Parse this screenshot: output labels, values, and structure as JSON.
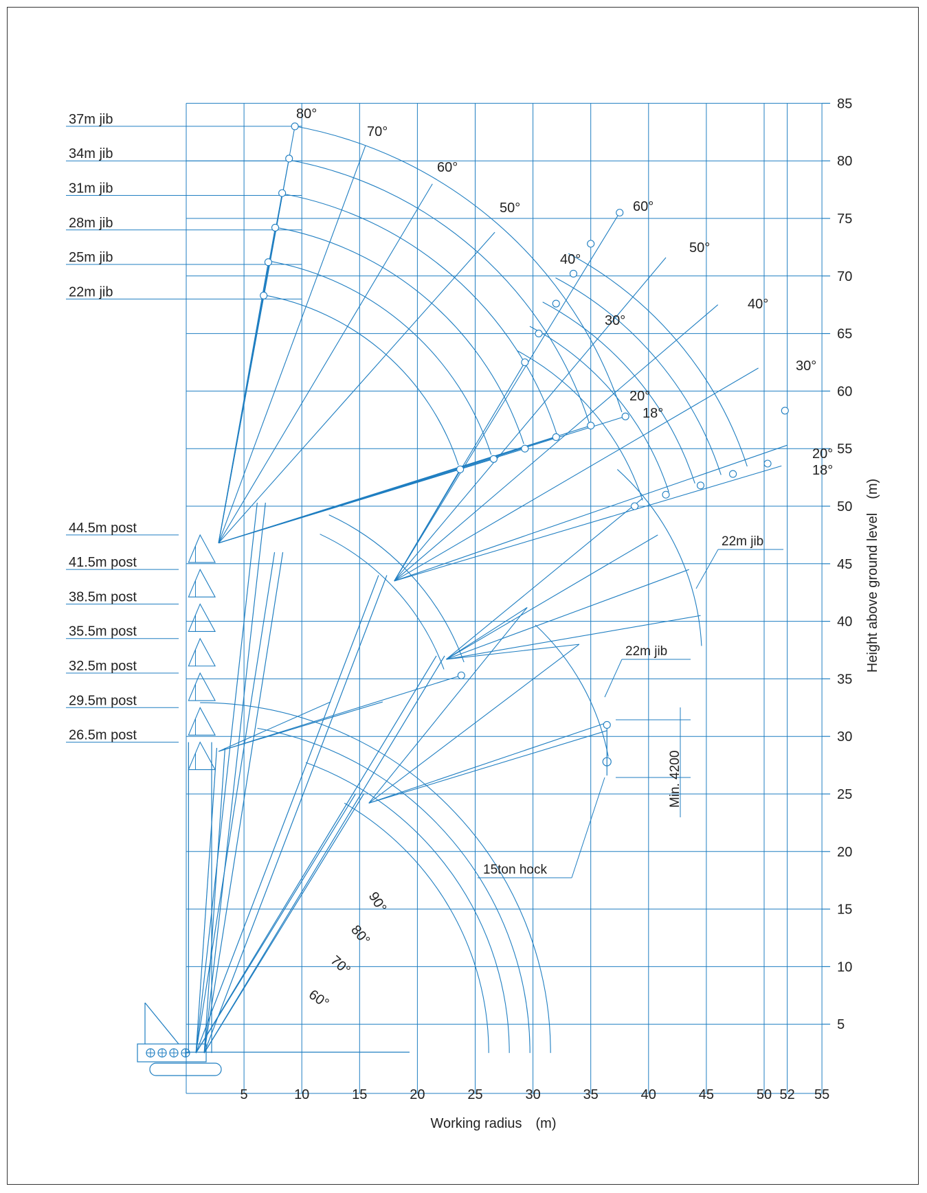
{
  "colors": {
    "line": "#1f7ec1",
    "text": "#222222",
    "frame": "#333333",
    "background": "#ffffff"
  },
  "axes": {
    "x_label": "Working radius　(m)",
    "y_label": "Height above ground level　(m)",
    "x_ticks": [
      "5",
      "10",
      "15",
      "20",
      "25",
      "30",
      "35",
      "40",
      "45",
      "50",
      "52",
      "55"
    ],
    "y_ticks": [
      "5",
      "10",
      "15",
      "20",
      "25",
      "30",
      "35",
      "40",
      "45",
      "50",
      "55",
      "60",
      "65",
      "70",
      "75",
      "80",
      "85"
    ]
  },
  "jib_labels": [
    "37m jib",
    "34m jib",
    "31m jib",
    "28m jib",
    "25m jib",
    "22m jib"
  ],
  "post_labels": [
    "44.5m post",
    "41.5m post",
    "38.5m post",
    "35.5m post",
    "32.5m post",
    "29.5m post",
    "26.5m post"
  ],
  "post_angles": [
    "60°",
    "70°",
    "80°",
    "90°"
  ],
  "jib_angles_upper": [
    "80°",
    "70°",
    "60°",
    "50°",
    "40°",
    "30°",
    "20°",
    "18°"
  ],
  "jib_angles_right": [
    "60°",
    "50°",
    "40°",
    "30°",
    "20°",
    "18°"
  ],
  "callouts": {
    "jib_upper": "22m jib",
    "jib_lower": "22m jib",
    "hook": "15ton hock",
    "min_clearance": "Min. 4200"
  }
}
